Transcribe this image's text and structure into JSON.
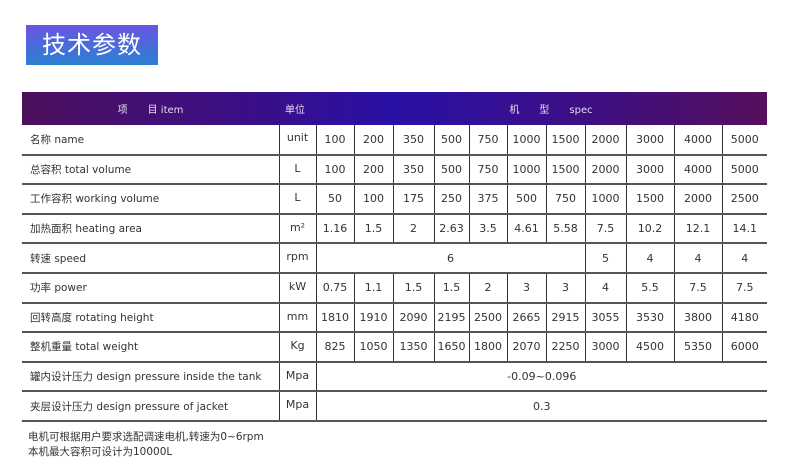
{
  "title": "技术参数",
  "header": {
    "item": "项　　目 item",
    "unit": "单位",
    "spec": "机　　型　　spec"
  },
  "rows": [
    {
      "label": "名称 name",
      "unit": "unit",
      "values": [
        "100",
        "200",
        "350",
        "500",
        "750",
        "1000",
        "1500",
        "2000",
        "3000",
        "4000",
        "5000"
      ]
    },
    {
      "label": "总容积 total volume",
      "unit": "L",
      "values": [
        "100",
        "200",
        "350",
        "500",
        "750",
        "1000",
        "1500",
        "2000",
        "3000",
        "4000",
        "5000"
      ]
    },
    {
      "label": "工作容积 working volume",
      "unit": "L",
      "values": [
        "50",
        "100",
        "175",
        "250",
        "375",
        "500",
        "750",
        "1000",
        "1500",
        "2000",
        "2500"
      ]
    },
    {
      "label": "加热面积 heating area",
      "unit": "m²",
      "values": [
        "1.16",
        "1.5",
        "2",
        "2.63",
        "3.5",
        "4.61",
        "5.58",
        "7.5",
        "10.2",
        "12.1",
        "14.1"
      ]
    },
    {
      "label": "转速 speed",
      "unit": "rpm",
      "values": [
        "6",
        "5",
        "4",
        "4",
        "4"
      ],
      "spans": [
        7,
        1,
        1,
        1,
        1
      ]
    },
    {
      "label": "功率 power",
      "unit": "kW",
      "values": [
        "0.75",
        "1.1",
        "1.5",
        "1.5",
        "2",
        "3",
        "3",
        "4",
        "5.5",
        "7.5",
        "7.5"
      ]
    },
    {
      "label": "回转高度 rotating height",
      "unit": "mm",
      "values": [
        "1810",
        "1910",
        "2090",
        "2195",
        "2500",
        "2665",
        "2915",
        "3055",
        "3530",
        "3800",
        "4180"
      ]
    },
    {
      "label": "整机重量 total weight",
      "unit": "Kg",
      "values": [
        "825",
        "1050",
        "1350",
        "1650",
        "1800",
        "2070",
        "2250",
        "3000",
        "4500",
        "5350",
        "6000"
      ]
    },
    {
      "label": "罐内设计压力 design pressure inside the tank",
      "unit": "Mpa",
      "values": [
        "-0.09~0.096"
      ],
      "spans": [
        11
      ]
    },
    {
      "label": "夹层设计压力 design pressure of jacket",
      "unit": "Mpa",
      "values": [
        "0.3"
      ],
      "spans": [
        11
      ]
    }
  ],
  "notes": [
    "电机可根据用户要求选配调速电机,转速为0~6rpm",
    "本机最大容积可设计为10000L"
  ]
}
